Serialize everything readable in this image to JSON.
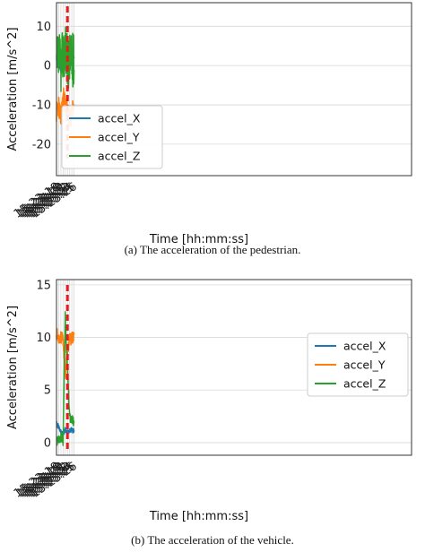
{
  "chart_data": [
    {
      "type": "line",
      "caption": "(a)  The acceleration of the pedestrian.",
      "xlabel": "Time [hh:mm:ss]",
      "ylabel": "Acceleration [m/s^2]",
      "xlim": [
        "15:23:18",
        "15:26:00"
      ],
      "ylim": [
        -28,
        16
      ],
      "x_ticks": [
        "15:23:18",
        "15:23:19",
        "15:23:20",
        "15:23:21",
        "15:23:22",
        "15:23:23",
        "15:23:24",
        "15:23:25",
        "15:23:26"
      ],
      "y_ticks": [
        -20,
        -10,
        0,
        10
      ],
      "grid": true,
      "legend_position": "lower-left",
      "marker_time": "15:23:23",
      "colors": {
        "accel_X": "#1f77b4",
        "accel_Y": "#ff7f0e",
        "accel_Z": "#2ca02c",
        "marker": "#e41a1c"
      },
      "series": [
        {
          "name": "accel_X",
          "x": [
            "15:23:18",
            "15:23:19",
            "15:23:20",
            "15:23:21",
            "15:23:22",
            "15:23:23",
            "15:23:24",
            "15:23:25",
            "15:23:26"
          ],
          "values": [
            1,
            0,
            0,
            0,
            0,
            1,
            2,
            1,
            2
          ]
        },
        {
          "name": "accel_Y",
          "x": [
            "15:23:18",
            "15:23:19",
            "15:23:20",
            "15:23:21",
            "15:23:22",
            "15:23:23",
            "15:23:24",
            "15:23:25",
            "15:23:26"
          ],
          "values": [
            -12,
            -10,
            -14,
            -8,
            -10,
            -12,
            -14,
            -12,
            -10
          ]
        },
        {
          "name": "accel_Z",
          "x": [
            "15:23:18",
            "15:23:19",
            "15:23:20",
            "15:23:21",
            "15:23:22",
            "15:23:23",
            "15:23:24",
            "15:23:25",
            "15:23:26"
          ],
          "values": [
            0,
            2,
            0,
            3,
            5,
            0,
            2,
            1,
            2
          ]
        }
      ]
    },
    {
      "type": "line",
      "caption": "(b)  The acceleration of the vehicle.",
      "xlabel": "Time [hh:mm:ss]",
      "ylabel": "Acceleration [m/s^2]",
      "xlim": [
        "15:23:18",
        "15:26:00"
      ],
      "ylim": [
        -1.2,
        15.5
      ],
      "x_ticks": [
        "15:23:18",
        "15:23:19",
        "15:23:20",
        "15:23:21",
        "15:23:22",
        "15:23:23",
        "15:23:24",
        "15:23:25",
        "15:23:26"
      ],
      "y_ticks": [
        0,
        5,
        10,
        15
      ],
      "grid": true,
      "legend_position": "center-right",
      "marker_time": "15:23:23",
      "colors": {
        "accel_X": "#1f77b4",
        "accel_Y": "#ff7f0e",
        "accel_Z": "#2ca02c",
        "marker": "#e41a1c"
      },
      "series": [
        {
          "name": "accel_X",
          "x": [
            "15:23:18",
            "15:23:19",
            "15:23:20",
            "15:23:21",
            "15:23:22",
            "15:23:23",
            "15:23:24",
            "15:23:25",
            "15:23:26"
          ],
          "values": [
            1.8,
            1.5,
            1.0,
            0.9,
            1.2,
            1.0,
            1.1,
            1.2,
            1.1
          ]
        },
        {
          "name": "accel_Y",
          "x": [
            "15:23:18",
            "15:23:19",
            "15:23:20",
            "15:23:21",
            "15:23:22",
            "15:23:23",
            "15:23:24",
            "15:23:25",
            "15:23:26"
          ],
          "values": [
            10.4,
            10.0,
            10.0,
            9.8,
            6.5,
            8.6,
            9.8,
            9.9,
            10.0
          ]
        },
        {
          "name": "accel_Z",
          "x": [
            "15:23:18",
            "15:23:19",
            "15:23:20",
            "15:23:21",
            "15:23:22",
            "15:23:23",
            "15:23:24",
            "15:23:25",
            "15:23:26"
          ],
          "values": [
            0.0,
            0.4,
            0.6,
            0.2,
            12.0,
            7.0,
            2.4,
            2.2,
            1.9
          ]
        }
      ]
    }
  ]
}
